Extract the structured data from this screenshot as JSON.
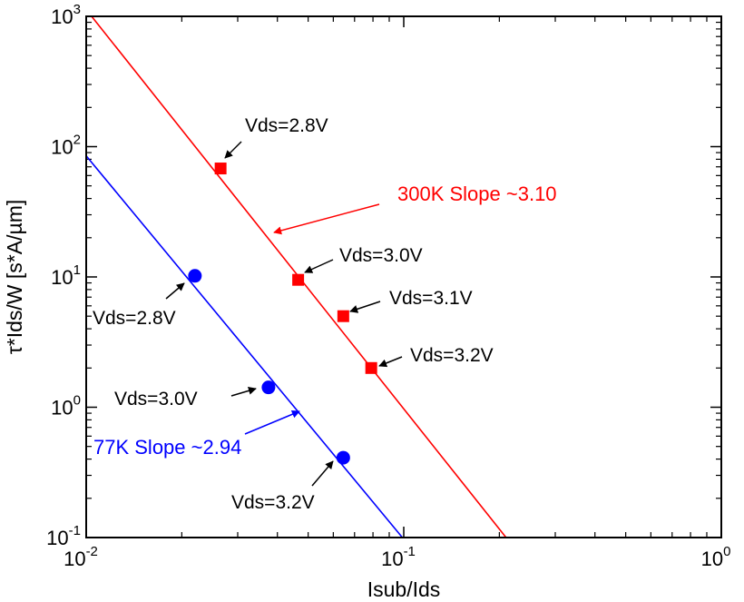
{
  "chart_data": {
    "type": "scatter",
    "x_scale": "log",
    "y_scale": "log",
    "xlim": [
      0.01,
      1
    ],
    "ylim": [
      0.1,
      1000
    ],
    "xlabel": "Isub/Ids",
    "ylabel": "τ*Ids/W [s*A/µm]",
    "x_ticks": [
      {
        "value": 0.01,
        "base": "10",
        "exp": "-2"
      },
      {
        "value": 0.1,
        "base": "10",
        "exp": "-1"
      },
      {
        "value": 1,
        "base": "10",
        "exp": "0"
      }
    ],
    "y_ticks": [
      {
        "value": 0.1,
        "base": "10",
        "exp": "-1"
      },
      {
        "value": 1,
        "base": "10",
        "exp": "0"
      },
      {
        "value": 10,
        "base": "10",
        "exp": "1"
      },
      {
        "value": 100,
        "base": "10",
        "exp": "2"
      },
      {
        "value": 1000,
        "base": "10",
        "exp": "3"
      }
    ],
    "grid": false,
    "series": [
      {
        "id": "s300",
        "label": "300K Slope ~3.10",
        "color": "#ff0000",
        "marker": "square",
        "fit_line": [
          [
            0.0104,
            1000
          ],
          [
            0.21,
            0.1
          ]
        ],
        "points": [
          {
            "x": 0.0265,
            "y": 68,
            "label": "Vds=2.8V"
          },
          {
            "x": 0.0465,
            "y": 9.5,
            "label": "Vds=3.0V"
          },
          {
            "x": 0.0645,
            "y": 5.0,
            "label": "Vds=3.1V"
          },
          {
            "x": 0.079,
            "y": 2.0,
            "label": "Vds=3.2V"
          }
        ]
      },
      {
        "id": "s77",
        "label": "77K Slope ~2.94",
        "color": "#0000ff",
        "marker": "circle",
        "fit_line": [
          [
            0.01,
            85
          ],
          [
            0.099,
            0.1
          ]
        ],
        "points": [
          {
            "x": 0.022,
            "y": 10.2,
            "label": "Vds=2.8V"
          },
          {
            "x": 0.0375,
            "y": 1.42,
            "label": "Vds=3.0V"
          },
          {
            "x": 0.0645,
            "y": 0.41,
            "label": "Vds=3.2V"
          }
        ]
      }
    ]
  }
}
